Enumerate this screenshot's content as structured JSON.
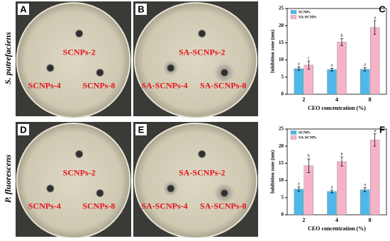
{
  "species": [
    "S. putrefaciens",
    "P. fluorescens"
  ],
  "panels": [
    {
      "letter": "A",
      "labels": [
        "SCNPs-2",
        "SCNPs-4",
        "SCNPs-8"
      ]
    },
    {
      "letter": "B",
      "labels": [
        "SA-SCNPs-2",
        "SA-SCNPs-4",
        "SA-SCNPs-8"
      ]
    },
    {
      "letter": "D",
      "labels": [
        "SCNPs-2",
        "SCNPs-4",
        "SCNPs-8"
      ]
    },
    {
      "letter": "E",
      "labels": [
        "SA-SCNPs-2",
        "SA-SCNPs-4",
        "SA-SCNPs-8"
      ]
    }
  ],
  "chart_data": [
    {
      "type": "bar",
      "panel": "C",
      "x_label": "CEO concentration (%)",
      "y_label": "Inhibition zone (nm)",
      "categories": [
        "2",
        "4",
        "8"
      ],
      "ylim": [
        0,
        25
      ],
      "yticks": [
        0,
        5,
        10,
        15,
        20,
        25
      ],
      "legend": "top-left",
      "series": [
        {
          "name": "SCNPs",
          "color": "#4fb8e8",
          "values": [
            7.5,
            7.2,
            7.3
          ],
          "errors": [
            0.5,
            0.4,
            0.5
          ],
          "letters": [
            "a",
            "a",
            "a"
          ]
        },
        {
          "name": "SA-SCNPs",
          "color": "#f5b3c8",
          "values": [
            8.5,
            15.2,
            19.5
          ],
          "errors": [
            1.2,
            1.0,
            2.0
          ],
          "letters": [
            "c",
            "b",
            "a"
          ]
        }
      ]
    },
    {
      "type": "bar",
      "panel": "F",
      "x_label": "CEO concentration (%)",
      "y_label": "Inhibition zone (nm)",
      "categories": [
        "2",
        "4",
        "8"
      ],
      "ylim": [
        0,
        25
      ],
      "yticks": [
        0,
        5,
        10,
        15,
        20,
        25
      ],
      "legend": "top-left",
      "series": [
        {
          "name": "SCNPs",
          "color": "#4fb8e8",
          "values": [
            7.5,
            6.8,
            7.3
          ],
          "errors": [
            0.7,
            0.4,
            0.6
          ],
          "letters": [
            "a",
            "a",
            "a"
          ]
        },
        {
          "name": "SA-SCNPs",
          "color": "#f5b3c8",
          "values": [
            14.3,
            15.5,
            21.8
          ],
          "errors": [
            2.0,
            1.3,
            1.8
          ],
          "letters": [
            "b",
            "b",
            "a"
          ]
        }
      ]
    }
  ]
}
